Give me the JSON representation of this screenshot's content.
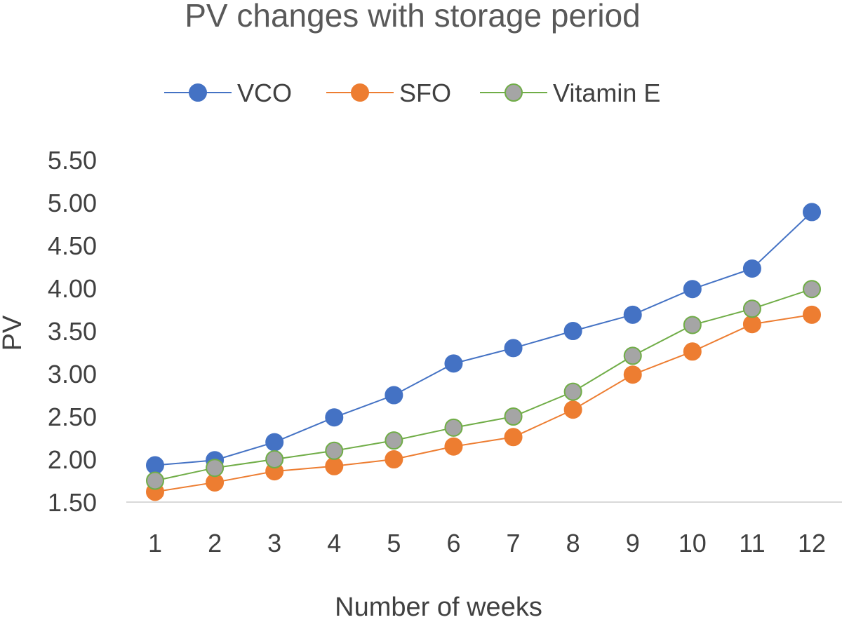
{
  "chart_data": {
    "type": "line",
    "title": "PV changes with storage period",
    "xlabel": "Number of weeks",
    "ylabel": "PV",
    "categories": [
      "1",
      "2",
      "3",
      "4",
      "5",
      "6",
      "7",
      "8",
      "9",
      "10",
      "11",
      "12"
    ],
    "ylim": [
      1.5,
      5.5
    ],
    "yticks": [
      "1.50",
      "2.00",
      "2.50",
      "3.00",
      "3.50",
      "4.00",
      "4.50",
      "5.00",
      "5.50"
    ],
    "grid": false,
    "legend_position": "top",
    "series": [
      {
        "name": "VCO",
        "color": "#4472C4",
        "marker_fill": "#4472C4",
        "marker_edge": "#4472C4",
        "values": [
          1.93,
          1.99,
          2.2,
          2.49,
          2.75,
          3.12,
          3.3,
          3.5,
          3.69,
          3.99,
          4.23,
          4.89
        ]
      },
      {
        "name": "SFO",
        "color": "#ED7D31",
        "marker_fill": "#ED7D31",
        "marker_edge": "#ED7D31",
        "values": [
          1.62,
          1.73,
          1.86,
          1.92,
          2.0,
          2.15,
          2.26,
          2.58,
          2.99,
          3.26,
          3.58,
          3.69
        ]
      },
      {
        "name": "Vitamin E",
        "color": "#70AD47",
        "marker_fill": "#A5A5A5",
        "marker_edge": "#70AD47",
        "values": [
          1.75,
          1.9,
          2.0,
          2.1,
          2.22,
          2.37,
          2.5,
          2.79,
          3.21,
          3.57,
          3.76,
          3.99
        ]
      }
    ]
  }
}
